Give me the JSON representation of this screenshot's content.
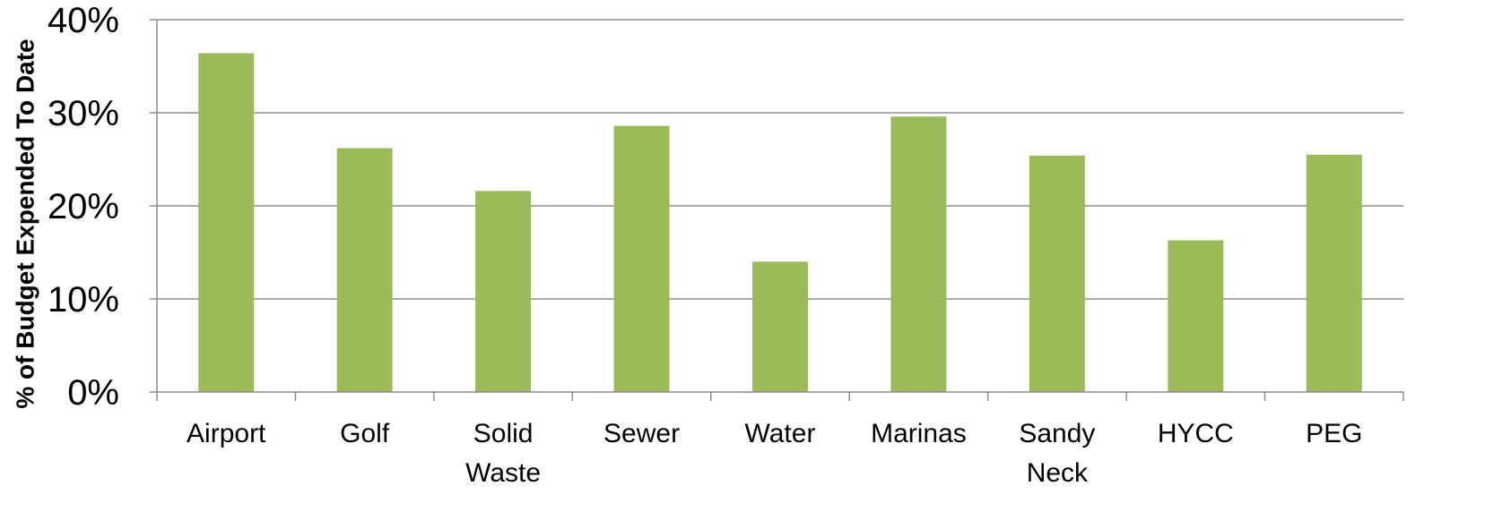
{
  "chart_data": {
    "type": "bar",
    "title": "",
    "xlabel": "",
    "ylabel": "% of Budget Expended To Date",
    "categories": [
      "Airport",
      "Golf",
      "Solid Waste",
      "Sewer",
      "Water",
      "Marinas",
      "Sandy Neck",
      "HYCC",
      "PEG"
    ],
    "category_lines": [
      [
        "Airport"
      ],
      [
        "Golf"
      ],
      [
        "Solid",
        "Waste"
      ],
      [
        "Sewer"
      ],
      [
        "Water"
      ],
      [
        "Marinas"
      ],
      [
        "Sandy",
        "Neck"
      ],
      [
        "HYCC"
      ],
      [
        "PEG"
      ]
    ],
    "values": [
      0.364,
      0.262,
      0.216,
      0.286,
      0.14,
      0.296,
      0.254,
      0.163,
      0.255
    ],
    "ylim": [
      0,
      0.4
    ],
    "yticks": [
      0,
      0.1,
      0.2,
      0.3,
      0.4
    ],
    "ytick_labels": [
      "0%",
      "10%",
      "20%",
      "30%",
      "40%"
    ],
    "grid": true,
    "legend": "none",
    "bar_color": "#9bbb59"
  }
}
